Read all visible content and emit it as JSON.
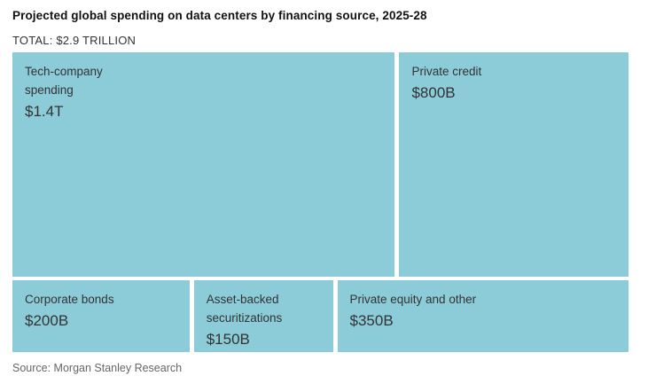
{
  "header": {
    "title": "Projected global spending on data centers by financing source, 2025-28",
    "total": "TOTAL: $2.9 TRILLION"
  },
  "treemap": {
    "cells": [
      {
        "label_line1": "Tech-company",
        "label_line2": "spending",
        "value": "$1.4T"
      },
      {
        "label_line1": "Private credit",
        "value": "$800B"
      },
      {
        "label_line1": "Corporate bonds",
        "value": "$200B"
      },
      {
        "label_line1": "Asset-backed",
        "label_line2": "securitizations",
        "value": "$150B"
      },
      {
        "label_line1": "Private equity and other",
        "value": "$350B"
      }
    ]
  },
  "footer": {
    "source": "Source: Morgan Stanley Research"
  },
  "colors": {
    "cell_fill": "#8bccd8",
    "gap": "#ffffff",
    "title_text": "#111111",
    "cell_text": "#333333",
    "source_text": "#666666",
    "background": "#ffffff"
  },
  "chart_data": {
    "type": "treemap",
    "title": "Projected global spending on data centers by financing source, 2025-28",
    "total_label": "TOTAL: $2.9 TRILLION",
    "total_billions_usd": 2900,
    "categories": [
      "Tech-company spending",
      "Private credit",
      "Corporate bonds",
      "Asset-backed securitizations",
      "Private equity and other"
    ],
    "values_billions_usd": [
      1400,
      800,
      200,
      150,
      350
    ],
    "value_labels": [
      "$1.4T",
      "$800B",
      "$200B",
      "$150B",
      "$350B"
    ],
    "layout": {
      "rows": [
        {
          "cells": [
            "Tech-company spending",
            "Private credit"
          ]
        },
        {
          "cells": [
            "Corporate bonds",
            "Asset-backed securitizations",
            "Private equity and other"
          ]
        }
      ],
      "legend": "none",
      "grid": "off"
    },
    "source": "Source: Morgan Stanley Research"
  }
}
